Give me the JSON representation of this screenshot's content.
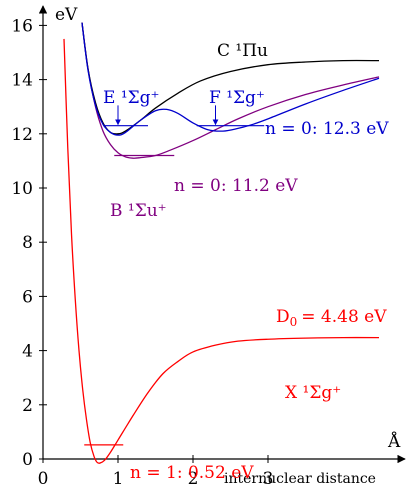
{
  "chart_data": {
    "type": "line",
    "title": "",
    "xlabel": "internuclear distance",
    "x_unit": "Å",
    "ylabel": "eV",
    "xlim": [
      0,
      4.5
    ],
    "ylim": [
      0,
      16.6
    ],
    "x_ticks": [
      "0",
      "1",
      "2",
      "3"
    ],
    "y_ticks": [
      "0",
      "2",
      "4",
      "6",
      "8",
      "10",
      "12",
      "14",
      "16"
    ],
    "grid": false,
    "series": [
      {
        "name": "X ¹Σg⁺",
        "color": "#ff0000",
        "points": [
          [
            0.28,
            15.5
          ],
          [
            0.33,
            11.5
          ],
          [
            0.38,
            8.3
          ],
          [
            0.43,
            5.9
          ],
          [
            0.48,
            4.0
          ],
          [
            0.53,
            2.55
          ],
          [
            0.58,
            1.45
          ],
          [
            0.63,
            0.6
          ],
          [
            0.68,
            0.1
          ],
          [
            0.72,
            -0.12
          ],
          [
            0.76,
            -0.15
          ],
          [
            0.82,
            -0.05
          ],
          [
            0.9,
            0.25
          ],
          [
            1.0,
            0.7
          ],
          [
            1.2,
            1.6
          ],
          [
            1.4,
            2.45
          ],
          [
            1.6,
            3.15
          ],
          [
            1.8,
            3.6
          ],
          [
            2.0,
            3.95
          ],
          [
            2.3,
            4.2
          ],
          [
            2.6,
            4.35
          ],
          [
            3.0,
            4.42
          ],
          [
            3.5,
            4.46
          ],
          [
            4.0,
            4.48
          ],
          [
            4.48,
            4.48
          ]
        ],
        "annotations": {
          "dissociation_label": "D",
          "dissociation_sub": "0",
          "dissociation_value": "= 4.48 eV",
          "level_label": "n = 1: 0.52 eV",
          "level_value_ev": 0.52
        }
      },
      {
        "name": "B ¹Σu⁺",
        "color": "#800080",
        "points": [
          [
            0.52,
            16.1
          ],
          [
            0.6,
            14.4
          ],
          [
            0.7,
            13.0
          ],
          [
            0.8,
            12.1
          ],
          [
            0.9,
            11.6
          ],
          [
            1.0,
            11.3
          ],
          [
            1.1,
            11.15
          ],
          [
            1.2,
            11.1
          ],
          [
            1.3,
            11.12
          ],
          [
            1.5,
            11.2
          ],
          [
            1.7,
            11.4
          ],
          [
            2.0,
            11.75
          ],
          [
            2.3,
            12.15
          ],
          [
            2.6,
            12.55
          ],
          [
            3.0,
            13.0
          ],
          [
            3.5,
            13.45
          ],
          [
            4.0,
            13.8
          ],
          [
            4.48,
            14.1
          ]
        ],
        "annotations": {
          "level_label": "n = 0: 11.2 eV",
          "level_value_ev": 11.2
        }
      },
      {
        "name": "C ¹Πu",
        "color": "#000000",
        "points": [
          [
            0.52,
            16.1
          ],
          [
            0.6,
            14.4
          ],
          [
            0.7,
            13.15
          ],
          [
            0.8,
            12.4
          ],
          [
            0.9,
            12.05
          ],
          [
            1.0,
            12.0
          ],
          [
            1.1,
            12.1
          ],
          [
            1.3,
            12.5
          ],
          [
            1.5,
            12.95
          ],
          [
            1.8,
            13.5
          ],
          [
            2.1,
            13.95
          ],
          [
            2.5,
            14.3
          ],
          [
            3.0,
            14.55
          ],
          [
            3.5,
            14.65
          ],
          [
            4.0,
            14.7
          ],
          [
            4.48,
            14.7
          ]
        ]
      },
      {
        "name": "E ¹Σg⁺",
        "color": "#0000cc",
        "points": [
          [
            0.52,
            16.1
          ],
          [
            0.6,
            14.35
          ],
          [
            0.7,
            13.05
          ],
          [
            0.8,
            12.35
          ],
          [
            0.9,
            12.05
          ],
          [
            1.0,
            11.95
          ],
          [
            1.1,
            12.05
          ],
          [
            1.3,
            12.5
          ],
          [
            1.5,
            12.85
          ],
          [
            1.65,
            12.9
          ],
          [
            1.8,
            12.75
          ],
          [
            2.0,
            12.4
          ],
          [
            2.2,
            12.15
          ],
          [
            2.4,
            12.1
          ],
          [
            2.6,
            12.2
          ],
          [
            2.8,
            12.35
          ],
          [
            3.0,
            12.55
          ],
          [
            3.5,
            13.1
          ],
          [
            4.0,
            13.6
          ],
          [
            4.48,
            14.05
          ]
        ],
        "annotations": {
          "label_E": "E ¹Σg⁺",
          "label_F": "F ¹Σg⁺",
          "level_label": "n = 0: 12.3 eV",
          "level_value_ev": 12.3
        }
      }
    ],
    "labels": {
      "C": "C ¹Πu",
      "E": "E ¹Σg⁺",
      "F": "F ¹Σg⁺",
      "B": "B ¹Σu⁺",
      "X": "X ¹Σg⁺"
    }
  }
}
